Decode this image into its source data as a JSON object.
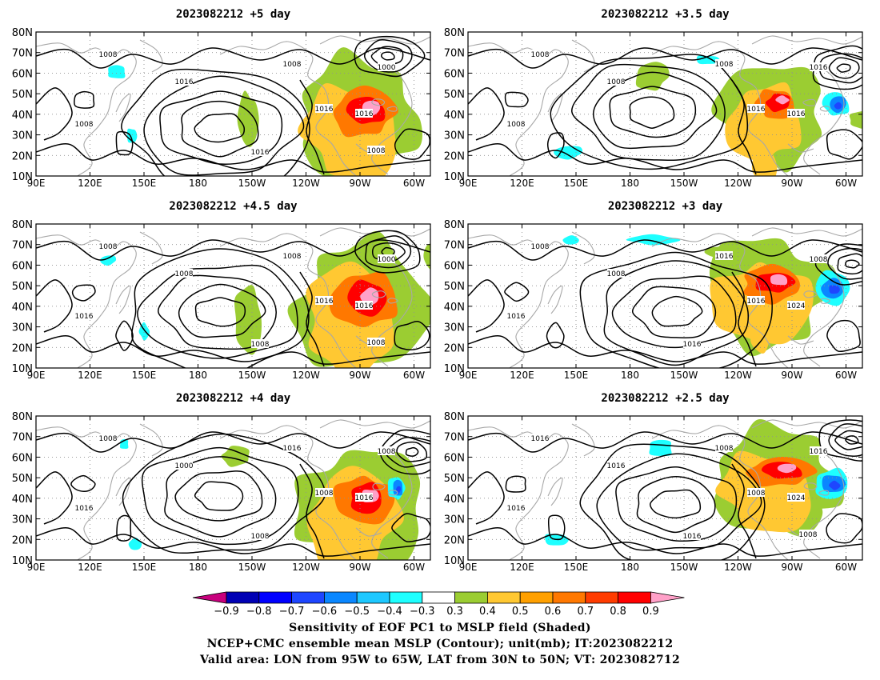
{
  "panels": [
    {
      "title": "2023082212  +5 day",
      "contour_labels": [
        "1008",
        "1008",
        "1000",
        "1016",
        "1016",
        "1016",
        "1008",
        "1016",
        "1008"
      ]
    },
    {
      "title": "2023082212  +3.5 day",
      "contour_labels": [
        "1008",
        "1008",
        "1016",
        "1008",
        "1016",
        "1016",
        "1008"
      ]
    },
    {
      "title": "2023082212  +4.5 day",
      "contour_labels": [
        "1008",
        "1008",
        "1000",
        "1008",
        "1016",
        "1016",
        "1016",
        "1008",
        "1008"
      ]
    },
    {
      "title": "2023082212  +3 day",
      "contour_labels": [
        "1008",
        "1016",
        "1008",
        "1008",
        "1016",
        "1024",
        "1016",
        "1016"
      ]
    },
    {
      "title": "2023082212  +4 day",
      "contour_labels": [
        "1008",
        "1016",
        "1008",
        "1000",
        "1008",
        "1016",
        "1016",
        "1008"
      ]
    },
    {
      "title": "2023082212  +2.5 day",
      "contour_labels": [
        "1016",
        "1008",
        "1016",
        "1016",
        "1008",
        "1024",
        "1016",
        "1016",
        "1008"
      ]
    }
  ],
  "lat_ticks": [
    "80N",
    "70N",
    "60N",
    "50N",
    "40N",
    "30N",
    "20N",
    "10N"
  ],
  "lon_ticks": [
    "90E",
    "120E",
    "150E",
    "180",
    "150W",
    "120W",
    "90W",
    "60W"
  ],
  "colorbar": {
    "tick_labels": [
      "−0.9",
      "−0.8",
      "−0.7",
      "−0.6",
      "−0.5",
      "−0.4",
      "−0.3",
      "0.3",
      "0.4",
      "0.5",
      "0.6",
      "0.7",
      "0.8",
      "0.9"
    ],
    "colors": [
      "#c8007d",
      "#0000b4",
      "#0000ff",
      "#1e46ff",
      "#0a87ff",
      "#1ec8ff",
      "#1effff",
      "#ffffff",
      "#9bcd32",
      "#ffc832",
      "#ffa000",
      "#ff7800",
      "#ff3c00",
      "#ff0000",
      "#ffa0c8"
    ]
  },
  "footer": {
    "line1": "Sensitivity of EOF PC1 to MSLP field (Shaded)",
    "line2": "NCEP+CMC ensemble mean MSLP (Contour); unit(mb); IT:2023082212",
    "line3": "Valid area: LON from 95W to 65W, LAT from 30N to 50N; VT: 2023082712"
  }
}
